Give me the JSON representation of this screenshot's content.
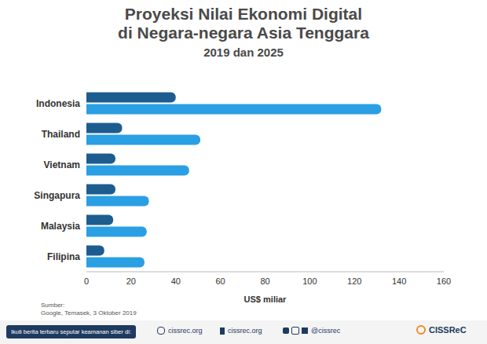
{
  "chart_data": {
    "type": "bar",
    "orientation": "horizontal",
    "title": [
      "Proyeksi Nilai Ekonomi Digital",
      "di Negara-negara Asia Tenggara"
    ],
    "subtitle": "2019 dan 2025",
    "categories": [
      "Indonesia",
      "Thailand",
      "Vietnam",
      "Singapura",
      "Malaysia",
      "Filipina"
    ],
    "series": [
      {
        "color": "#1d5c8f",
        "values": [
          40,
          16,
          13,
          13,
          12,
          8
        ]
      },
      {
        "color": "#2a9fe3",
        "values": [
          132,
          51,
          46,
          28,
          27,
          26
        ]
      }
    ],
    "xlim": [
      0,
      160
    ],
    "xticks": [
      0,
      20,
      40,
      60,
      80,
      100,
      120,
      140,
      160
    ],
    "xlabel": "US$ miliar",
    "grid": false,
    "source": [
      "Sumber:",
      "Google, Temasek, 3 Oktober 2019"
    ]
  },
  "footer": {
    "notice": "Ikuti berita terbaru seputar keamanan siber di:",
    "website": "cissrec.org",
    "facebook": "cissrec.org",
    "social": "@cissrec",
    "logo": "CISSReC"
  }
}
